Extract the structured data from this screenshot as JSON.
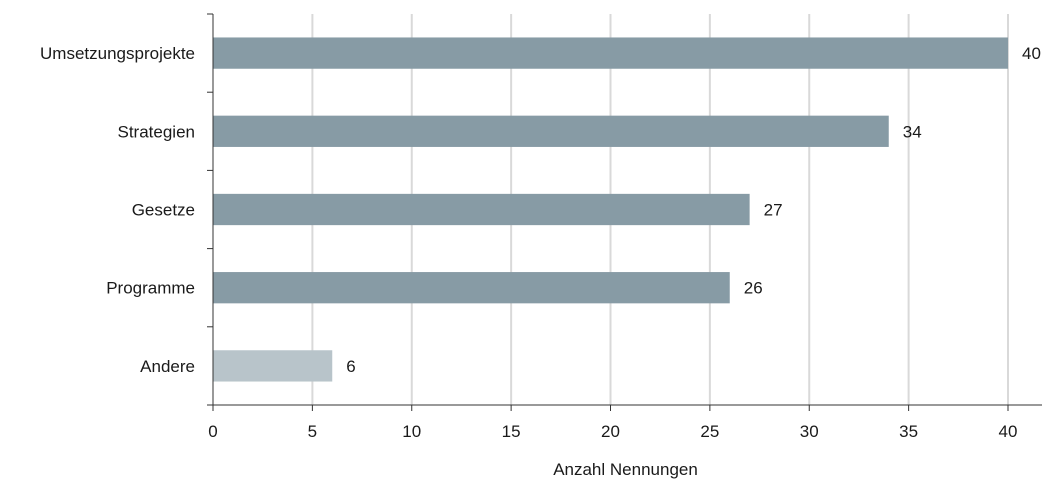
{
  "chart_data": {
    "type": "bar",
    "orientation": "horizontal",
    "categories": [
      "Umsetzungsprojekte",
      "Strategien",
      "Gesetze",
      "Programme",
      "Andere"
    ],
    "values": [
      40,
      34,
      27,
      26,
      6
    ],
    "bar_colors": [
      "#879ba5",
      "#879ba5",
      "#879ba5",
      "#879ba5",
      "#b8c4ca"
    ],
    "xlabel": "Anzahl Nennungen",
    "ylabel": "",
    "title": "",
    "xlim": [
      0,
      41.5
    ],
    "xticks": [
      0,
      5,
      10,
      15,
      20,
      25,
      30,
      35,
      40
    ],
    "xtick_labels": [
      "0",
      "5",
      "10",
      "15",
      "20",
      "25",
      "30",
      "35",
      "40"
    ],
    "data_labels": [
      "40",
      "34",
      "27",
      "26",
      "6"
    ],
    "grid": "vertical",
    "legend": "none"
  }
}
